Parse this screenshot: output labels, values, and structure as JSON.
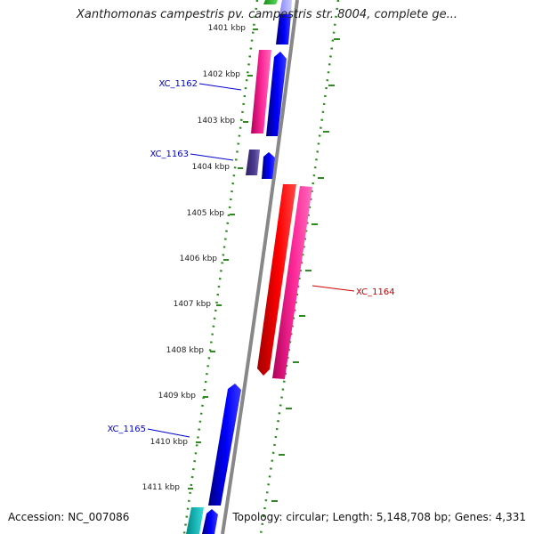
{
  "title": "Xanthomonas campestris pv. campestris str. 8004, complete ge...",
  "footer": {
    "accession": "Accession: NC_007086",
    "topology": "Topology: circular; Length: 5,148,708 bp; Genes: 4,331"
  },
  "ticks": [
    {
      "label": "1401 kbp"
    },
    {
      "label": "1402 kbp"
    },
    {
      "label": "1403 kbp"
    },
    {
      "label": "1404 kbp"
    },
    {
      "label": "1405 kbp"
    },
    {
      "label": "1406 kbp"
    },
    {
      "label": "1407 kbp"
    },
    {
      "label": "1408 kbp"
    },
    {
      "label": "1409 kbp"
    },
    {
      "label": "1410 kbp"
    },
    {
      "label": "1411 kbp"
    }
  ],
  "gene_labels": [
    {
      "text": "XC_1162",
      "color": "#0000cc"
    },
    {
      "text": "XC_1163",
      "color": "#0000cc"
    },
    {
      "text": "XC_1164",
      "color": "#cc0000"
    },
    {
      "text": "XC_1165",
      "color": "#0000cc"
    }
  ],
  "colors": {
    "backbone": "#888888",
    "dotted_ring": "#2e8b1f",
    "tick_mark": "#2e8b1f",
    "gene_blue": "#0000ee",
    "gene_pink": "#ff1493",
    "gene_red": "#ee0000",
    "gene_purple": "#4b3b8f",
    "gene_green": "#33cc33",
    "gene_cyan": "#00bbbb",
    "label_blue": "#0000cc",
    "label_red": "#cc0000"
  }
}
